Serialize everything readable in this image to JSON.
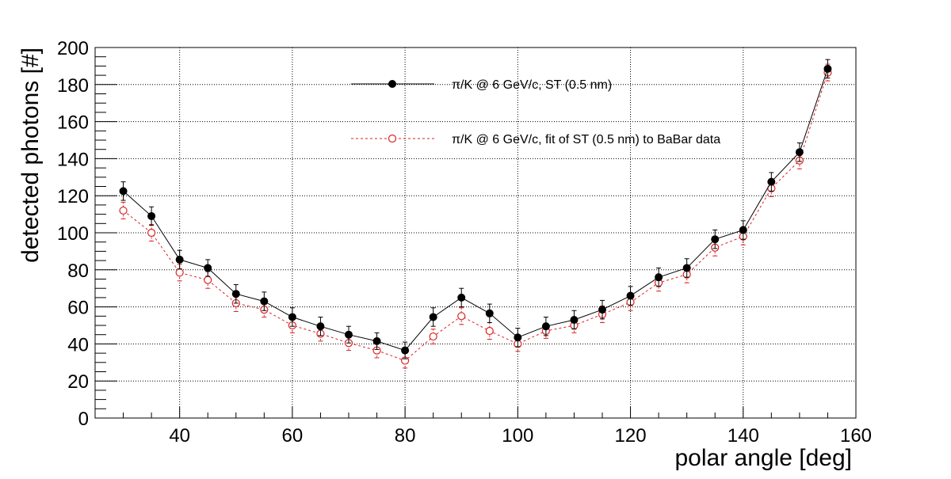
{
  "chart_data": {
    "type": "scatter",
    "title": "",
    "xlabel": "polar angle [deg]",
    "ylabel": "detected photons [#]",
    "xlim": [
      25,
      160
    ],
    "ylim": [
      0,
      200
    ],
    "x_ticks": [
      40,
      60,
      80,
      100,
      120,
      140,
      160
    ],
    "x_tick_labels": [
      "40",
      "60",
      "80",
      "100",
      "120",
      "140",
      "160"
    ],
    "y_ticks": [
      0,
      20,
      40,
      60,
      80,
      100,
      120,
      140,
      160,
      180,
      200
    ],
    "y_tick_labels": [
      "0",
      "20",
      "40",
      "60",
      "80",
      "100",
      "120",
      "140",
      "160",
      "180",
      "200"
    ],
    "grid": true,
    "legend_position": "top-center",
    "x": [
      30,
      35,
      40,
      45,
      50,
      55,
      60,
      65,
      70,
      75,
      80,
      85,
      90,
      95,
      100,
      105,
      110,
      115,
      120,
      125,
      130,
      135,
      140,
      145,
      150,
      155
    ],
    "series": [
      {
        "name": "π/K @ 6 GeV/c, ST (0.5 nm)",
        "color": "#000000",
        "marker": "filled-circle",
        "line": "solid",
        "values": [
          122.5,
          109,
          85.5,
          81,
          67,
          63,
          54.5,
          49.5,
          45,
          41.5,
          36.5,
          54.5,
          65,
          56.5,
          43.5,
          49.5,
          53,
          58.5,
          66,
          76,
          81,
          96.5,
          101.5,
          127.5,
          143.5,
          188.5
        ],
        "errors": [
          5,
          5,
          5,
          4.5,
          5,
          5,
          5,
          5,
          4.5,
          4.5,
          4.5,
          5,
          5,
          5,
          5,
          5,
          5,
          5,
          5,
          5,
          5,
          5,
          5,
          5,
          5,
          5
        ]
      },
      {
        "name": "π/K @ 6 GeV/c, fit of ST (0.5 nm) to BaBar data",
        "color": "#dd2222",
        "marker": "open-circle",
        "line": "dashed",
        "values": [
          112,
          100,
          78.5,
          74.5,
          62,
          58.5,
          50,
          45.5,
          40.5,
          36.5,
          31,
          44,
          55,
          47,
          40,
          47,
          50,
          56,
          62.5,
          73,
          77.5,
          92,
          98,
          124,
          139,
          186.5
        ],
        "errors": [
          4.5,
          4.5,
          4.5,
          4.5,
          4.5,
          4,
          4,
          4,
          4,
          4,
          4,
          4,
          4.5,
          4.5,
          4,
          4,
          4,
          4.5,
          4.5,
          4.5,
          4.5,
          4.5,
          4.5,
          4.5,
          4.5,
          4.5
        ]
      }
    ]
  }
}
